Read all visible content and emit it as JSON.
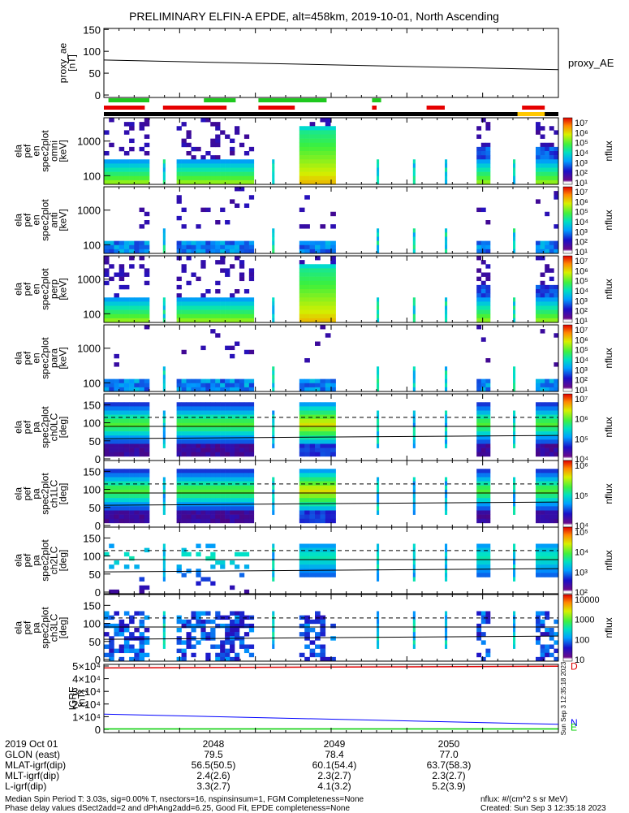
{
  "title": "PRELIMINARY ELFIN-A EPDE, alt=458km, 2019-10-01, North Ascending",
  "colors": {
    "proxy_line": "#000000",
    "green_bar": "#1ec81e",
    "red_bar": "#e60000",
    "black_bar": "#000000",
    "yellow_bar": "#ffc800",
    "igrf_red": "#dd0000",
    "igrf_blue": "#0000ff",
    "igrf_green": "#00cc00"
  },
  "chart_data": {
    "type": "heatmap",
    "x_ticks": [
      "2048",
      "2049",
      "2050"
    ],
    "proxy_ae": {
      "ylabel": [
        "proxy_ae",
        "[nT]"
      ],
      "right_label": "proxy_AE",
      "ylim": [
        0,
        150
      ],
      "yticks": [
        "150",
        "100",
        "50",
        "0"
      ],
      "line": [
        80,
        58
      ]
    },
    "bars": {
      "green": [
        [
          0.01,
          0.1
        ],
        [
          0.22,
          0.29
        ],
        [
          0.34,
          0.49
        ],
        [
          0.59,
          0.61
        ]
      ],
      "red": [
        [
          0.0,
          0.09
        ],
        [
          0.13,
          0.27
        ],
        [
          0.34,
          0.42
        ],
        [
          0.59,
          0.6
        ],
        [
          0.71,
          0.75
        ],
        [
          0.92,
          0.97
        ]
      ],
      "yellow": [
        [
          0.91,
          0.97
        ]
      ]
    },
    "spectra": [
      {
        "ylabel": [
          "ela",
          "pef",
          "en",
          "spec2plot",
          "omni",
          "[keV]"
        ],
        "yticks": [
          "1000",
          "100"
        ],
        "cb": [
          "10⁷",
          "10⁶",
          "10⁵",
          "10⁴",
          "10³",
          "10²",
          "10¹"
        ],
        "cb_label": "nflux"
      },
      {
        "ylabel": [
          "ela",
          "pef",
          "en",
          "spec2plot",
          "anti",
          "[keV]"
        ],
        "yticks": [
          "1000",
          "100"
        ],
        "cb": [
          "10⁷",
          "10⁶",
          "10⁵",
          "10⁴",
          "10³",
          "10²",
          "10¹"
        ],
        "cb_label": "nflux"
      },
      {
        "ylabel": [
          "ela",
          "pef",
          "en",
          "spec2plot",
          "perp",
          "[keV]"
        ],
        "yticks": [
          "1000",
          "100"
        ],
        "cb": [
          "10⁷",
          "10⁶",
          "10⁵",
          "10⁴",
          "10³",
          "10²",
          "10¹"
        ],
        "cb_label": "nflux"
      },
      {
        "ylabel": [
          "ela",
          "pef",
          "en",
          "spec2plot",
          "para",
          "[keV]"
        ],
        "yticks": [
          "1000",
          "100"
        ],
        "cb": [
          "10⁷",
          "10⁶",
          "10⁵",
          "10⁴",
          "10³",
          "10²",
          "10¹"
        ],
        "cb_label": "nflux"
      }
    ],
    "pitch": [
      {
        "ylabel": [
          "ela",
          "pef",
          "pa",
          "spec2plot",
          "ch0LC",
          "[deg]"
        ],
        "yticks": [
          "150",
          "100",
          "50",
          "0"
        ],
        "cb": [
          "10⁷",
          "10⁶",
          "10⁵",
          "10⁴"
        ],
        "cb_label": "nflux"
      },
      {
        "ylabel": [
          "ela",
          "pef",
          "pa",
          "spec2plot",
          "ch1LC",
          "[deg]"
        ],
        "yticks": [
          "150",
          "100",
          "50",
          "0"
        ],
        "cb": [
          "10⁶",
          "10⁵",
          "10⁴"
        ],
        "cb_label": "nflux"
      },
      {
        "ylabel": [
          "ela",
          "pef",
          "pa",
          "spec2plot",
          "ch2LC",
          "[deg]"
        ],
        "yticks": [
          "150",
          "100",
          "50",
          "0"
        ],
        "cb": [
          "10⁵",
          "10⁴",
          "10³",
          "10²"
        ],
        "cb_label": "nflux"
      },
      {
        "ylabel": [
          "ela",
          "pef",
          "pa",
          "spec2plot",
          "ch3LC",
          "[deg]"
        ],
        "yticks": [
          "150",
          "100",
          "50",
          "0"
        ],
        "cb": [
          "10000",
          "1000",
          "100",
          "10"
        ],
        "cb_label": "nflux"
      }
    ],
    "igrf": {
      "ylabel": [
        "IGRF",
        "[nT]"
      ],
      "yticks": [
        "5×10⁴",
        "4×10⁴",
        "3×10⁴",
        "2×10⁴",
        "1×10⁴",
        "0"
      ],
      "ylim": [
        0,
        50000
      ],
      "total": [
        48500,
        49800
      ],
      "north": [
        12000,
        4000
      ],
      "east": [
        300,
        300
      ],
      "right_labels": [
        "D",
        "N",
        "E"
      ],
      "stamp": "Sun Sep  3 12:35:18 2023"
    }
  },
  "orbit": {
    "rows": [
      {
        "label": "2019 Oct 01",
        "values": [
          "2048",
          "2049",
          "2050"
        ]
      },
      {
        "label": "GLON (east)",
        "values": [
          "79.5",
          "78.4",
          "77.0"
        ]
      },
      {
        "label": "MLAT-igrf(dip)",
        "values": [
          "56.5(50.5)",
          "60.1(54.4)",
          "63.7(58.3)"
        ]
      },
      {
        "label": "MLT-igrf(dip)",
        "values": [
          "2.4(2.6)",
          "2.3(2.7)",
          "2.3(2.7)"
        ]
      },
      {
        "label": "L-igrf(dip)",
        "values": [
          "3.3(2.7)",
          "4.1(3.2)",
          "5.2(3.9)"
        ]
      }
    ]
  },
  "footer": {
    "line1": "Median Spin Period T: 3.03s, sig=0.00% T, nsectors=16, nspinsinsum=1, FGM Completeness=None",
    "line2": "Phase delay values dSect2add=2 and dPhAng2add=6.25, Good Fit, EPDE completeness=None",
    "units": "nflux: #/(cm^2 s sr MeV)",
    "created": "Created: Sun Sep  3 12:35:18 2023"
  }
}
